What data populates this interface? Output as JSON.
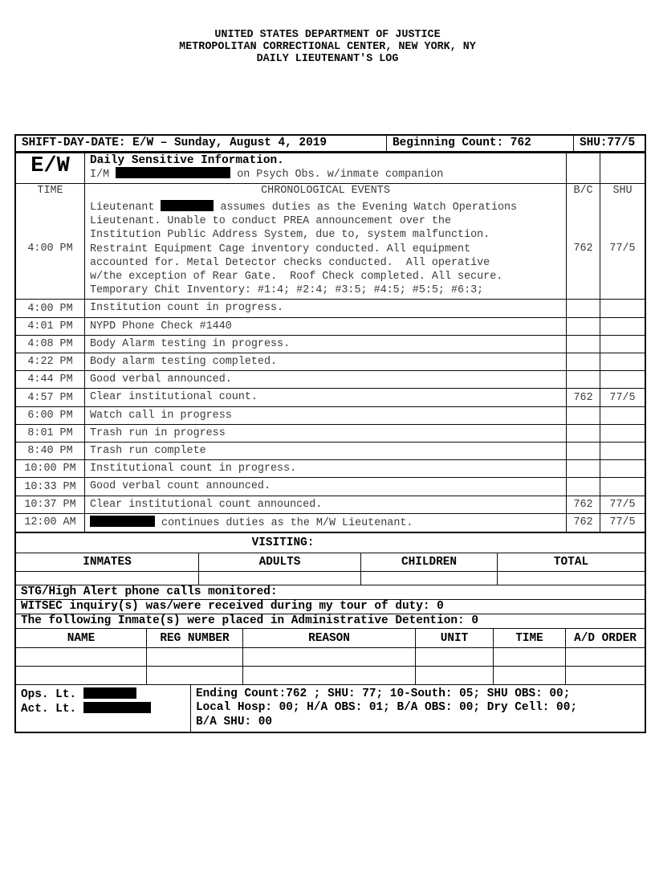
{
  "titles": [
    "UNITED STATES DEPARTMENT OF JUSTICE",
    "METROPOLITAN CORRECTIONAL CENTER, NEW YORK, NY",
    "DAILY LIEUTENANT'S LOG"
  ],
  "header": {
    "shift_day_date": "SHIFT-DAY-DATE: E/W – Sunday, August 4, 2019",
    "beginning_count": "Beginning Count: 762",
    "shu": "SHU:77/5"
  },
  "sensitive": {
    "shift_code": "E/W",
    "line1": "Daily Sensitive Information.",
    "im_prefix": "I/M ",
    "im_suffix": " on Psych Obs. w/inmate companion"
  },
  "log": {
    "columns": {
      "time": "TIME",
      "events": "CHRONOLOGICAL EVENTS",
      "bc": "B/C",
      "shu": "SHU"
    },
    "entries": [
      {
        "time": "4:00 PM",
        "text": "Lieutenant [REDACTED] assumes duties as the Evening Watch Operations\nLieutenant. Unable to conduct PREA announcement over the\nInstitution Public Address System, due to, system malfunction.\nRestraint Equipment Cage inventory conducted. All equipment\naccounted for. Metal Detector checks conducted.  All operative\nw/the exception of Rear Gate.  Roof Check completed. All secure.\nTemporary Chit Inventory: #1:4; #2:4; #3:5; #4:5; #5:5; #6:3;",
        "redact_width": 66,
        "bc": "762",
        "shu": "77/5"
      },
      {
        "time": "4:00 PM",
        "text": "Institution count in progress.",
        "bc": "",
        "shu": ""
      },
      {
        "time": "4:01 PM",
        "text": "NYPD Phone Check #1440",
        "bc": "",
        "shu": ""
      },
      {
        "time": "4:08 PM",
        "text": "Body Alarm testing in progress.",
        "bc": "",
        "shu": ""
      },
      {
        "time": "4:22 PM",
        "text": "Body alarm testing completed.",
        "bc": "",
        "shu": ""
      },
      {
        "time": "4:44 PM",
        "text": "Good verbal announced.",
        "bc": "",
        "shu": ""
      },
      {
        "time": "4:57 PM",
        "text": "Clear institutional count.",
        "bc": "762",
        "shu": "77/5"
      },
      {
        "time": "6:00 PM",
        "text": "Watch call in progress",
        "bc": "",
        "shu": ""
      },
      {
        "time": "8:01 PM",
        "text": "Trash run in progress",
        "bc": "",
        "shu": ""
      },
      {
        "time": "8:40 PM",
        "text": "Trash run complete",
        "bc": "",
        "shu": ""
      },
      {
        "time": "10:00 PM",
        "text": "Institutional count in progress.",
        "bc": "",
        "shu": ""
      },
      {
        "time": "10:33 PM",
        "text": "Good verbal count announced.",
        "bc": "",
        "shu": ""
      },
      {
        "time": "10:37 PM",
        "text": "Clear institutional count announced.",
        "bc": "762",
        "shu": "77/5"
      },
      {
        "time": "12:00 AM",
        "text": "[REDACTED] continues duties as the M/W Lieutenant.",
        "redact_width": 81,
        "bc": "762",
        "shu": "77/5"
      }
    ]
  },
  "visiting": {
    "title": "VISITING:",
    "columns": [
      "INMATES",
      "ADULTS",
      "CHILDREN",
      "TOTAL"
    ]
  },
  "notices": [
    "STG/High Alert phone calls monitored:",
    "WITSEC inquiry(s) was/were received during my tour of duty: 0",
    "The following Inmate(s) were placed in Administrative Detention: 0"
  ],
  "ad_table": {
    "columns": [
      "NAME",
      "REG NUMBER",
      "REASON",
      "UNIT",
      "TIME",
      "A/D ORDER"
    ]
  },
  "footer": {
    "ops_label": "Ops. Lt. ",
    "act_label": "Act. Lt. ",
    "summary": [
      "Ending Count:762 ; SHU: 77; 10-South: 05; SHU OBS: 00;",
      "Local Hosp: 00; H/A OBS: 01; B/A OBS: 00; Dry Cell: 00;",
      "B/A SHU: 00"
    ]
  },
  "redact_widths": {
    "im": 143,
    "ops": 66,
    "act": 84
  }
}
